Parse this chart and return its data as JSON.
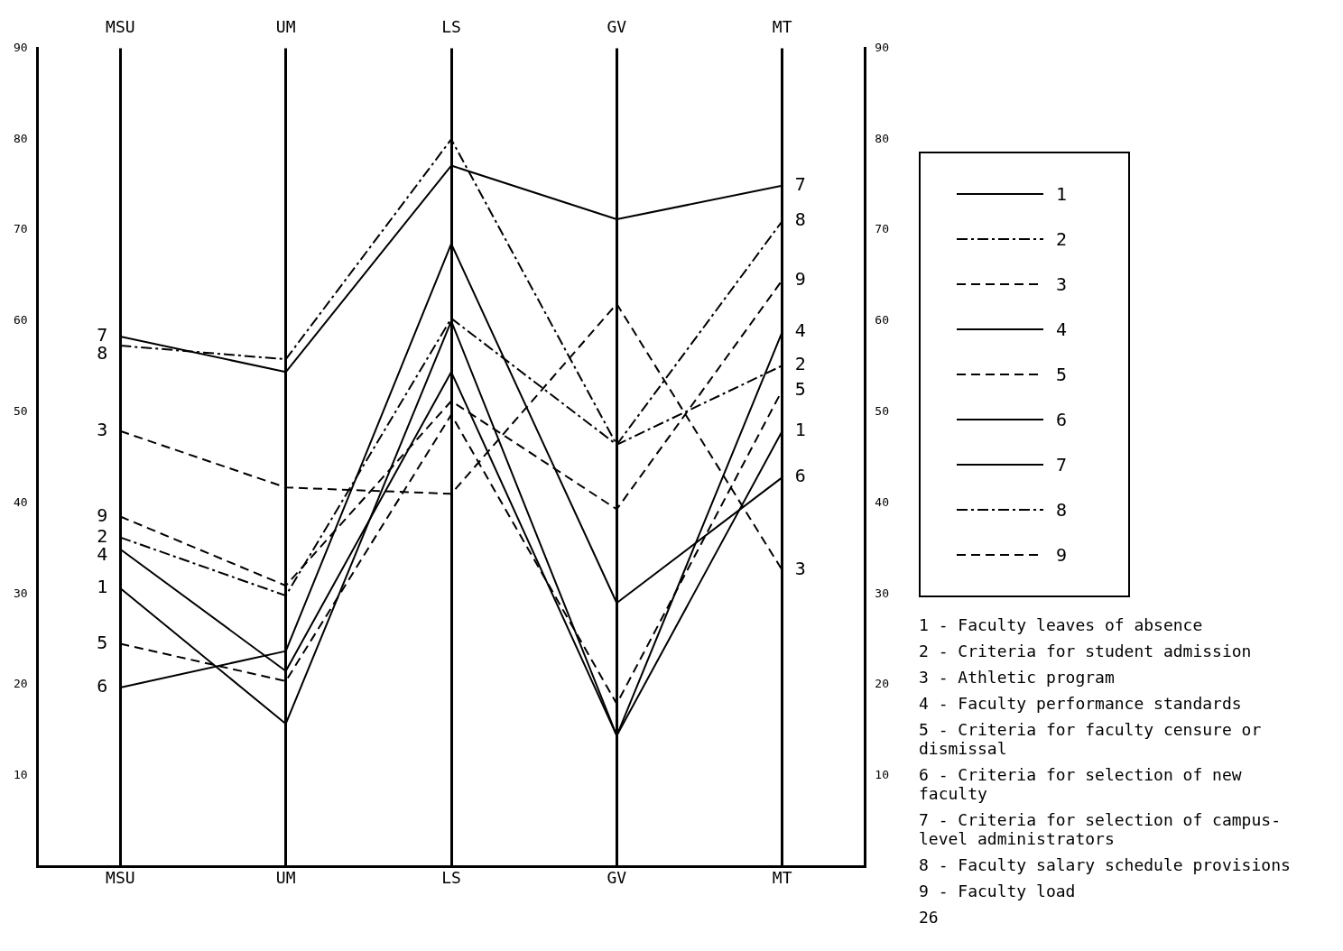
{
  "chart_data": {
    "type": "line",
    "categories": [
      "MSU",
      "UM",
      "LS",
      "GV",
      "MT"
    ],
    "ylim": [
      0,
      90
    ],
    "yticks": [
      10,
      20,
      30,
      40,
      50,
      60,
      70,
      80,
      90
    ],
    "y2lim": [
      0,
      90
    ],
    "y2ticks": [
      10,
      20,
      30,
      40,
      50,
      60,
      70,
      80,
      90
    ],
    "grid": "x",
    "legend": "right",
    "marker": "none",
    "series": [
      {
        "name": "1",
        "color": "#000000",
        "line_style": "solid",
        "values": [
          30.6,
          15.7,
          60,
          14.4,
          47.9
        ]
      },
      {
        "name": "2",
        "color": "#000000",
        "line_style": "dashdot",
        "values": [
          36.2,
          29.8,
          60.3,
          46.4,
          55.1
        ]
      },
      {
        "name": "3",
        "color": "#000000",
        "line_style": "dashed",
        "values": [
          47.9,
          41.7,
          41,
          61.9,
          32.6
        ]
      },
      {
        "name": "4",
        "color": "#000000",
        "line_style": "solid",
        "values": [
          34.9,
          21.5,
          54.4,
          14.4,
          58.8
        ]
      },
      {
        "name": "5",
        "color": "#000000",
        "line_style": "dashed",
        "values": [
          24.5,
          20.4,
          49.7,
          17.9,
          52.4
        ]
      },
      {
        "name": "6",
        "color": "#000000",
        "line_style": "solid",
        "values": [
          19.7,
          23.7,
          68.5,
          29,
          42.8
        ]
      },
      {
        "name": "7",
        "color": "#000000",
        "line_style": "solid",
        "values": [
          58.3,
          54.4,
          77.1,
          71.2,
          74.9
        ]
      },
      {
        "name": "8",
        "color": "#000000",
        "line_style": "dashdot",
        "values": [
          57.3,
          55.8,
          80,
          46.4,
          71
        ]
      },
      {
        "name": "9",
        "color": "#000000",
        "line_style": "dashed",
        "values": [
          38.5,
          30.9,
          51.2,
          39.3,
          64.5
        ]
      }
    ],
    "annotations": [
      "1 - Faculty leaves of absence",
      "2 - Criteria for student admission",
      "3 - Athletic program",
      "4 - Faculty performance standards",
      "5 - Criteria for faculty censure or dismissal",
      "6 - Criteria for selection of new faculty",
      "7 - Criteria for selection of campus-level administrators",
      "8 - Faculty salary schedule provisions",
      "9 - Faculty load",
      "26"
    ]
  }
}
